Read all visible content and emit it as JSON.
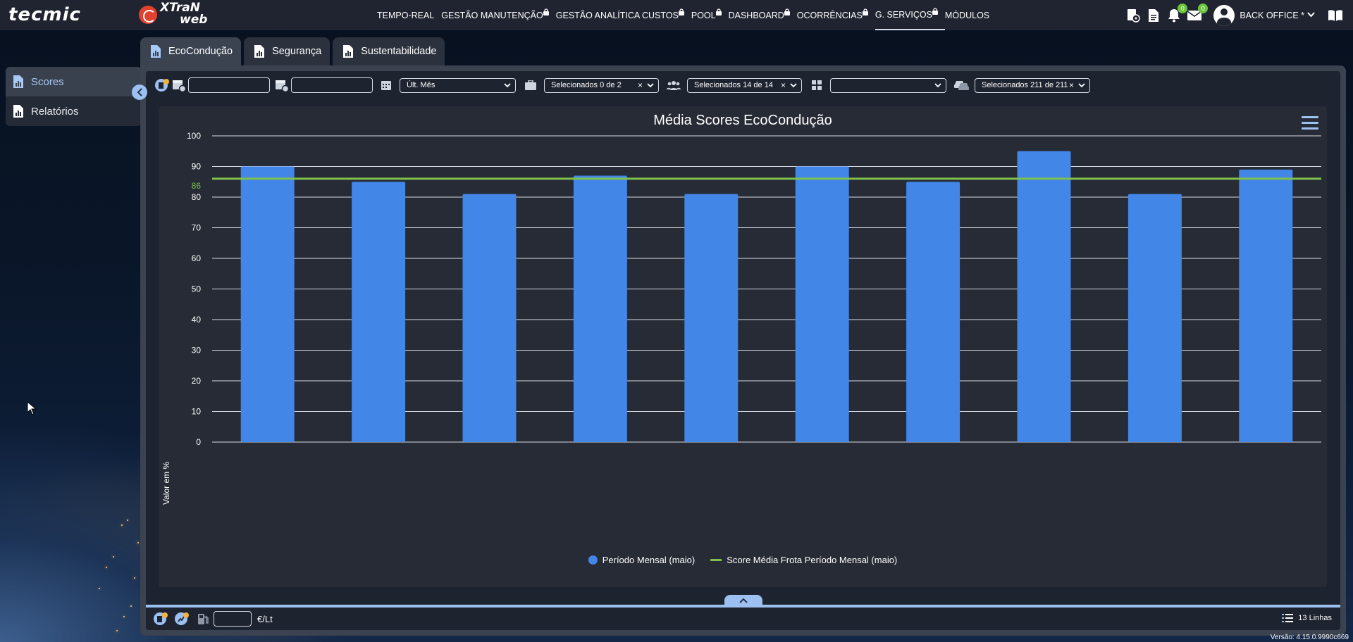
{
  "header": {
    "logo_tecmic": "tecmic",
    "logo_xtran_line1": "XTraN",
    "logo_xtran_line2": "web",
    "nav": [
      {
        "label": "TEMPO-REAL",
        "locked": false,
        "active": false
      },
      {
        "label": "GESTÃO MANUTENÇÃO",
        "locked": true,
        "active": false
      },
      {
        "label": "GESTÃO ANALÍTICA CUSTOS",
        "locked": true,
        "active": false
      },
      {
        "label": "POOL",
        "locked": true,
        "active": false
      },
      {
        "label": "DASHBOARD",
        "locked": true,
        "active": false
      },
      {
        "label": "OCORRÊNCIAS",
        "locked": true,
        "active": false
      },
      {
        "label": "G. SERVIÇOS",
        "locked": true,
        "active": true
      },
      {
        "label": "MÓDULOS",
        "locked": false,
        "active": false
      }
    ],
    "notifications_count": "0",
    "messages_count": "0",
    "user_name": "BACK OFFICE *"
  },
  "sidebar": {
    "items": [
      {
        "label": "Scores",
        "active": true
      },
      {
        "label": "Relatórios",
        "active": false
      }
    ]
  },
  "tabs": [
    {
      "label": "EcoCondução",
      "active": true
    },
    {
      "label": "Segurança",
      "active": false
    },
    {
      "label": "Sustentabilidade",
      "active": false
    }
  ],
  "filters": {
    "date_start_value": "",
    "date_end_value": "",
    "period": "Últ. Mês",
    "companies": "Selecionados 0 de 2",
    "groups": "Selecionados 14 de 14",
    "category": "",
    "vehicles": "Selecionados 211 de 211"
  },
  "chart_data": {
    "type": "bar",
    "title": "Média Scores EcoCondução",
    "xlabel": "",
    "ylabel": "Valor em %",
    "ylim": [
      0,
      100
    ],
    "yticks": [
      0,
      10,
      20,
      30,
      40,
      50,
      60,
      70,
      80,
      90,
      100
    ],
    "categories": [
      "",
      "",
      "",
      "",
      "",
      "",
      "",
      "",
      "",
      ""
    ],
    "series": [
      {
        "name": "Período Mensal (maio)",
        "type": "bar",
        "color": "#4286e8",
        "values": [
          90,
          85,
          81,
          87,
          81,
          90,
          85,
          95,
          81,
          89
        ]
      },
      {
        "name": "Score Média Frota Período Mensal (maio)",
        "type": "line",
        "color": "#7fc14b",
        "value": 86,
        "label": "86"
      }
    ],
    "grid": true,
    "legend": "bottom-center"
  },
  "bottom": {
    "fuel_value": "",
    "unit": "€/Lt",
    "lines_count": "13 Linhas"
  },
  "version": "Versão: 4.15.0.9990c669"
}
